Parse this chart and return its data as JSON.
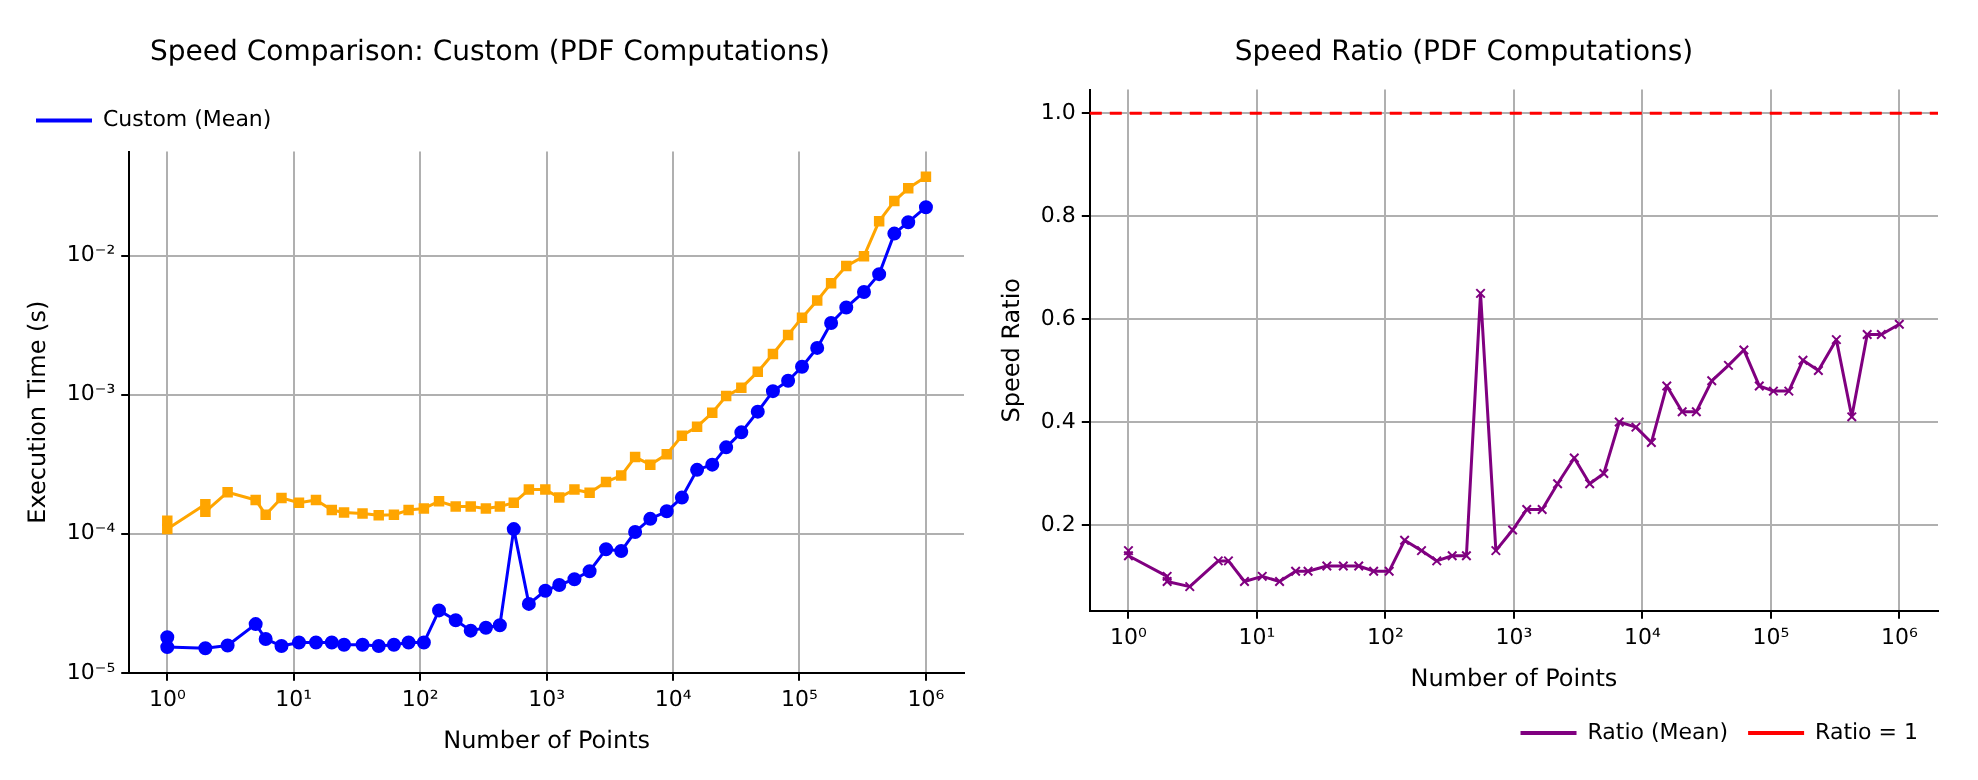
{
  "chart_data": [
    {
      "type": "line",
      "title": "Speed Comparison: Custom (PDF Computations)",
      "xlabel": "Number of Points",
      "ylabel": "Execution Time (s)",
      "log": "xy",
      "grid": true,
      "legend": "top left",
      "x": [
        1,
        1,
        2,
        2,
        3,
        5,
        6,
        8,
        11,
        15,
        20,
        25,
        35,
        47,
        62,
        81,
        107,
        141,
        191,
        251,
        331,
        427,
        550,
        724,
        977,
        1259,
        1660,
        2188,
        2951,
        3890,
        5012,
        6607,
        8913,
        11749,
        15488,
        20417,
        26303,
        34674,
        46774,
        61660,
        81283,
        104713,
        138038,
        177828,
        234423,
        323594,
        426580,
        562341,
        724436,
        1000000
      ],
      "xlim": [
        0.5,
        2000000
      ],
      "xticks": [
        {
          "value": 1,
          "label": "10⁰"
        },
        {
          "value": 10,
          "label": "10¹"
        },
        {
          "value": 100,
          "label": "10²"
        },
        {
          "value": 1000,
          "label": "10³"
        },
        {
          "value": 10000,
          "label": "10⁴"
        },
        {
          "value": 100000,
          "label": "10⁵"
        },
        {
          "value": 1000000,
          "label": "10⁶"
        }
      ],
      "ylim": [
        1e-05,
        0.056
      ],
      "yticks": [
        {
          "value": 1e-05,
          "label": "10⁻⁵"
        },
        {
          "value": 0.0001,
          "label": "10⁻⁴"
        },
        {
          "value": 0.001,
          "label": "10⁻³"
        },
        {
          "value": 0.01,
          "label": "10⁻²"
        }
      ],
      "series": [
        {
          "name": "Custom (Mean)",
          "color": "#0000ff",
          "marker": "circle",
          "values": [
            1.8e-05,
            1.53e-05,
            1.5e-05,
            null,
            1.57e-05,
            2.24e-05,
            1.75e-05,
            1.56e-05,
            1.65e-05,
            1.65e-05,
            1.65e-05,
            1.59e-05,
            1.59e-05,
            1.56e-05,
            1.59e-05,
            1.65e-05,
            1.65e-05,
            2.81e-05,
            2.39e-05,
            2.01e-05,
            2.11e-05,
            2.2e-05,
            0.000108,
            3.13e-05,
            3.89e-05,
            4.28e-05,
            4.71e-05,
            5.38e-05,
            7.73e-05,
            7.51e-05,
            0.000103,
            0.000128,
            0.000145,
            0.000182,
            0.000288,
            0.000314,
            0.000418,
            0.000536,
            0.000755,
            0.00106,
            0.00126,
            0.00159,
            0.00217,
            0.00328,
            0.00424,
            0.00548,
            0.00736,
            0.0144,
            0.0174,
            0.0223
          ]
        },
        {
          "color": "#ffa500",
          "marker": "square",
          "values": [
            0.000124,
            0.000108,
            0.000163,
            0.000144,
            0.000199,
            0.000175,
            0.000137,
            0.000181,
            0.000167,
            0.000175,
            0.000148,
            0.000142,
            0.00014,
            0.000136,
            0.000137,
            0.000148,
            0.000152,
            0.000171,
            0.000157,
            0.000157,
            0.000152,
            0.000157,
            0.000167,
            0.000208,
            0.000208,
            0.000182,
            0.000208,
            0.000197,
            0.000236,
            0.000262,
            0.000356,
            0.000314,
            0.000373,
            0.000506,
            0.000589,
            0.000741,
            0.000977,
            0.00112,
            0.00146,
            0.00196,
            0.00269,
            0.00358,
            0.00475,
            0.00633,
            0.00841,
            0.00991,
            0.0177,
            0.0247,
            0.0305,
            0.0369
          ]
        }
      ]
    },
    {
      "type": "line",
      "title": "Speed Ratio (PDF Computations)",
      "xlabel": "Number of Points",
      "ylabel": "Speed Ratio",
      "log": "x",
      "grid": true,
      "legend": "bottom right",
      "x": [
        1,
        1,
        2,
        2,
        3,
        5,
        6,
        8,
        11,
        15,
        20,
        25,
        35,
        47,
        62,
        81,
        107,
        141,
        191,
        251,
        331,
        427,
        550,
        724,
        977,
        1259,
        1660,
        2188,
        2951,
        3890,
        5012,
        6607,
        8913,
        11749,
        15488,
        20417,
        26303,
        34674,
        46774,
        61660,
        81283,
        104713,
        138038,
        177828,
        234423,
        323594,
        426580,
        562341,
        724436,
        1000000
      ],
      "xlim": [
        0.5,
        2000000
      ],
      "xticks": [
        {
          "value": 1,
          "label": "10⁰"
        },
        {
          "value": 10,
          "label": "10¹"
        },
        {
          "value": 100,
          "label": "10²"
        },
        {
          "value": 1000,
          "label": "10³"
        },
        {
          "value": 10000,
          "label": "10⁴"
        },
        {
          "value": 100000,
          "label": "10⁵"
        },
        {
          "value": 1000000,
          "label": "10⁶"
        }
      ],
      "ylim": [
        0.033,
        1.046
      ],
      "yticks": [
        {
          "value": 0.2,
          "label": "0.2"
        },
        {
          "value": 0.4,
          "label": "0.4"
        },
        {
          "value": 0.6,
          "label": "0.6"
        },
        {
          "value": 0.8,
          "label": "0.8"
        },
        {
          "value": 1,
          "label": "1.0"
        }
      ],
      "series": [
        {
          "name": "Ratio (Mean)",
          "color": "#800080",
          "marker": "cross",
          "values": [
            0.15,
            0.14,
            0.1,
            0.09,
            0.08,
            0.13,
            0.13,
            0.09,
            0.1,
            0.09,
            0.11,
            0.11,
            0.12,
            0.12,
            0.12,
            0.11,
            0.11,
            0.17,
            0.15,
            0.13,
            0.14,
            0.14,
            0.65,
            0.15,
            0.19,
            0.23,
            0.23,
            0.28,
            0.33,
            0.28,
            0.3,
            0.4,
            0.39,
            0.36,
            0.47,
            0.42,
            0.42,
            0.48,
            0.51,
            0.54,
            0.47,
            0.46,
            0.46,
            0.52,
            0.5,
            0.56,
            0.41,
            0.57,
            0.57,
            0.59
          ]
        }
      ],
      "ref_lines": [
        {
          "axis": "y",
          "value": 1,
          "label": "Ratio = 1",
          "color": "#ff0000",
          "line_style": "dashed"
        }
      ]
    }
  ]
}
